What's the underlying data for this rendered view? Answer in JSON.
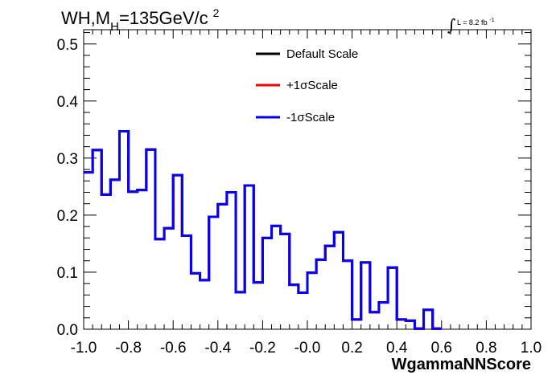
{
  "chart_data": {
    "type": "line",
    "style": "step-histogram",
    "title": {
      "prefix": "WH,M",
      "subscript": "H",
      "suffix": "=135GeV/c",
      "superscript": "2"
    },
    "lumi": {
      "symbol": "∫",
      "text": "L = 8.2 fb",
      "superscript": "-1"
    },
    "xlabel": "WgammaNNScore",
    "ylabel": "",
    "xlim": [
      -1.0,
      1.0
    ],
    "ylim": [
      0.0,
      0.525
    ],
    "x_tick_labels": [
      "-1.0",
      "-0.8",
      "-0.6",
      "-0.4",
      "-0.2",
      "-0.0",
      "0.2",
      "0.4",
      "0.6",
      "0.8",
      "1.0"
    ],
    "y_tick_labels": [
      "0.0",
      "0.1",
      "0.2",
      "0.3",
      "0.4",
      "0.5"
    ],
    "bin_edges_start": -1.0,
    "bin_width": 0.04,
    "legend_position": "top-center",
    "series": [
      {
        "name": "Default Scale",
        "color": "#000000",
        "values": [
          0.275,
          0.314,
          0.236,
          0.262,
          0.347,
          0.241,
          0.244,
          0.315,
          0.158,
          0.177,
          0.27,
          0.164,
          0.098,
          0.086,
          0.197,
          0.219,
          0.24,
          0.065,
          0.252,
          0.082,
          0.16,
          0.181,
          0.167,
          0.078,
          0.064,
          0.099,
          0.122,
          0.146,
          0.17,
          0.12,
          0.017,
          0.117,
          0.03,
          0.047,
          0.108,
          0.017,
          0.015,
          0.001,
          0.034,
          0.001
        ]
      },
      {
        "name": "+1σScale",
        "color": "#ff0000",
        "values": [
          0.275,
          0.314,
          0.236,
          0.262,
          0.347,
          0.241,
          0.244,
          0.315,
          0.158,
          0.177,
          0.27,
          0.164,
          0.098,
          0.086,
          0.197,
          0.219,
          0.24,
          0.065,
          0.252,
          0.082,
          0.16,
          0.181,
          0.167,
          0.078,
          0.064,
          0.099,
          0.122,
          0.146,
          0.17,
          0.12,
          0.017,
          0.117,
          0.03,
          0.047,
          0.108,
          0.017,
          0.015,
          0.001,
          0.034,
          0.001
        ]
      },
      {
        "name": "-1σScale",
        "color": "#0000ff",
        "values": [
          0.275,
          0.314,
          0.236,
          0.262,
          0.347,
          0.241,
          0.244,
          0.315,
          0.158,
          0.177,
          0.27,
          0.164,
          0.098,
          0.086,
          0.197,
          0.219,
          0.24,
          0.065,
          0.252,
          0.082,
          0.16,
          0.181,
          0.167,
          0.078,
          0.064,
          0.099,
          0.122,
          0.146,
          0.17,
          0.12,
          0.017,
          0.117,
          0.03,
          0.047,
          0.108,
          0.017,
          0.015,
          0.001,
          0.034,
          0.001
        ]
      }
    ]
  }
}
